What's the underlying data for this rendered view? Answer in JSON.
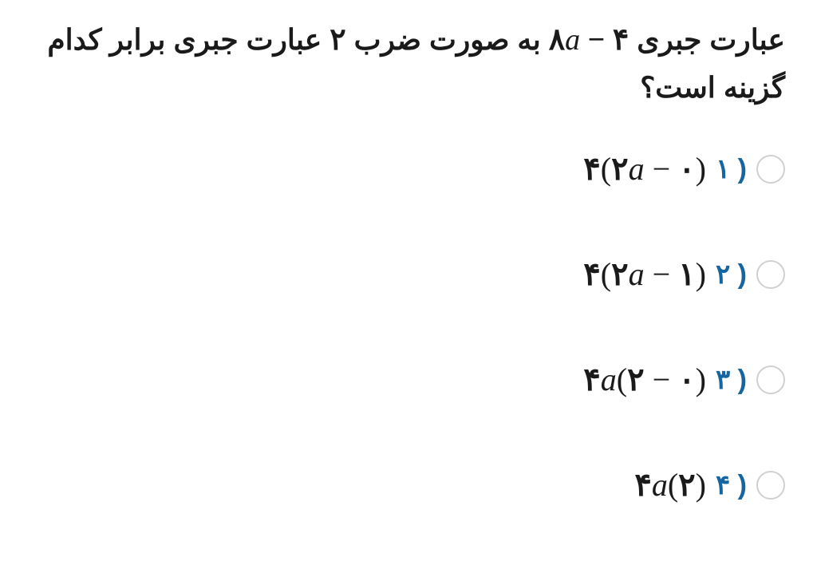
{
  "question": {
    "part1": "عبارت جبری ",
    "expr_coef1": "۸",
    "expr_var": "a",
    "expr_op": " − ",
    "expr_coef2": "۴",
    "part2": " به صورت ضرب ",
    "count": "۲",
    "part3": " عبارت جبری برابر کدام گزینه است؟"
  },
  "options": [
    {
      "number": "۱",
      "formula_parts": {
        "p1": "۴",
        "p2": "(",
        "p3": "۲",
        "var": "a",
        "op": " − ",
        "p4": "۰",
        "p5": ")"
      }
    },
    {
      "number": "۲",
      "formula_parts": {
        "p1": "۴",
        "p2": "(",
        "p3": "۲",
        "var": "a",
        "op": " − ",
        "p4": "۱",
        "p5": ")"
      }
    },
    {
      "number": "۳",
      "formula_parts": {
        "p1": "۴",
        "var1": "a",
        "p2": "(",
        "p3": "۲",
        "op": " − ",
        "p4": "۰",
        "p5": ")"
      }
    },
    {
      "number": "۴",
      "formula_parts": {
        "p1": "۴",
        "var1": "a",
        "p2": "(",
        "p3": "۲",
        "p5": ")"
      }
    }
  ],
  "colors": {
    "text": "#1a1a1a",
    "accent": "#1565a0",
    "radio_border": "#d0d0d0",
    "background": "#ffffff"
  }
}
